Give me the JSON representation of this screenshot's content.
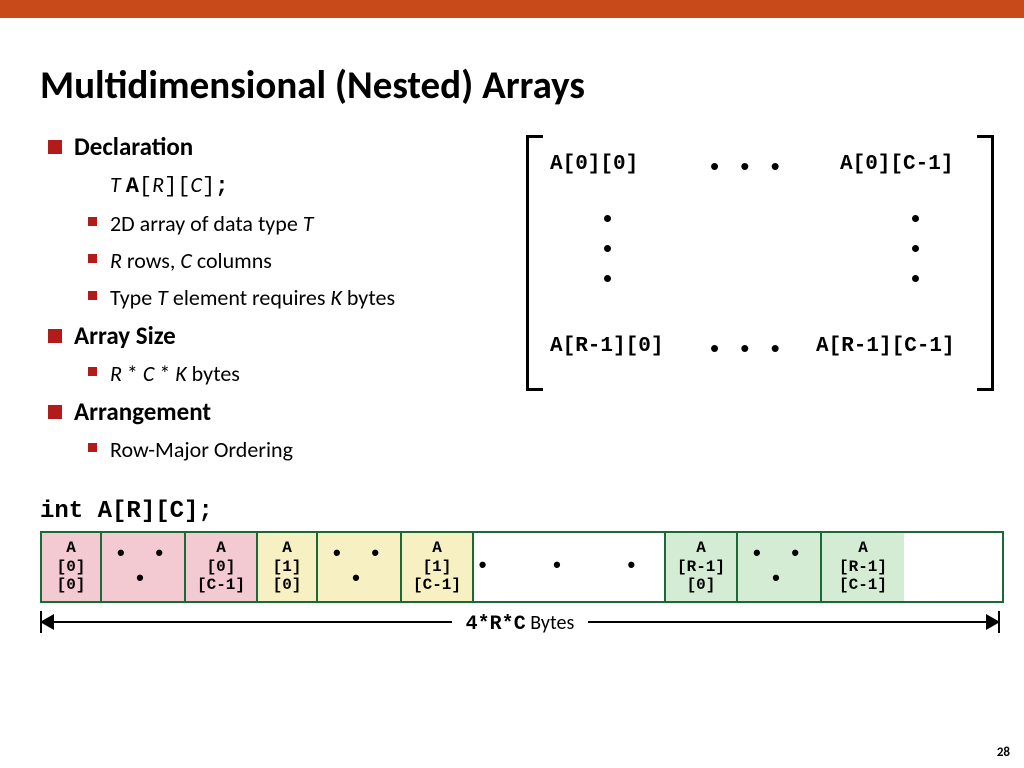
{
  "colors": {
    "top_bar": "#c84a1a",
    "bullet": "#b31b1b",
    "mem_border": "#1a6a36",
    "pink": "#f3c9d2",
    "yellow": "#f7f0c2",
    "green": "#d4ecd4",
    "white": "#ffffff",
    "text": "#000000"
  },
  "title": "Multidimensional (Nested) Arrays",
  "sections": {
    "declaration": {
      "heading": "Declaration",
      "decl_T": "T",
      "decl_A": "A",
      "decl_R": "R",
      "decl_C": "C",
      "semicolon": ";",
      "item1_prefix": "2D array of data type ",
      "item1_T": "T",
      "item2_R": "R",
      "item2_mid": " rows, ",
      "item2_C": "C",
      "item2_suffix": " columns",
      "item3_prefix": "Type ",
      "item3_T": "T",
      "item3_mid": " element requires ",
      "item3_K": "K",
      "item3_suffix": " bytes"
    },
    "arraysize": {
      "heading": "Array Size",
      "formula_R": "R",
      "formula_times1": " * ",
      "formula_C": "C",
      "formula_times2": " * ",
      "formula_K": "K",
      "formula_suffix": " bytes"
    },
    "arrangement": {
      "heading": "Arrangement",
      "item1": "Row-Major Ordering"
    }
  },
  "matrix": {
    "top_left": "A[0][0]",
    "top_right": "A[0][C-1]",
    "bottom_left": "A[R-1][0]",
    "bottom_right": "A[R-1][C-1]",
    "hdots": "• • •"
  },
  "memory": {
    "decl": "int A[R][C];",
    "cells": [
      {
        "lines": [
          "A",
          "[0]",
          "[0]"
        ],
        "color": "pink",
        "w": "w55"
      },
      {
        "lines": [
          "• • •"
        ],
        "color": "pink",
        "w": "wdots"
      },
      {
        "lines": [
          "A",
          "[0]",
          "[C-1]"
        ],
        "color": "pink",
        "w": "w70"
      },
      {
        "lines": [
          "A",
          "[1]",
          "[0]"
        ],
        "color": "yellow",
        "w": "w55"
      },
      {
        "lines": [
          "• • •"
        ],
        "color": "yellow",
        "w": "wdots"
      },
      {
        "lines": [
          "A",
          "[1]",
          "[C-1]"
        ],
        "color": "yellow",
        "w": "w70"
      },
      {
        "lines": [
          "•  •  •"
        ],
        "color": "white",
        "w": "wgap"
      },
      {
        "lines": [
          "A",
          "[R-1]",
          "[0]"
        ],
        "color": "green",
        "w": "w70"
      },
      {
        "lines": [
          "• • •"
        ],
        "color": "green",
        "w": "wdots"
      },
      {
        "lines": [
          "A",
          "[R-1]",
          "[C-1]"
        ],
        "color": "green",
        "w": "w80"
      }
    ],
    "brace_label_code": "4*R*C",
    "brace_label_text": " Bytes"
  },
  "page_number": "28"
}
